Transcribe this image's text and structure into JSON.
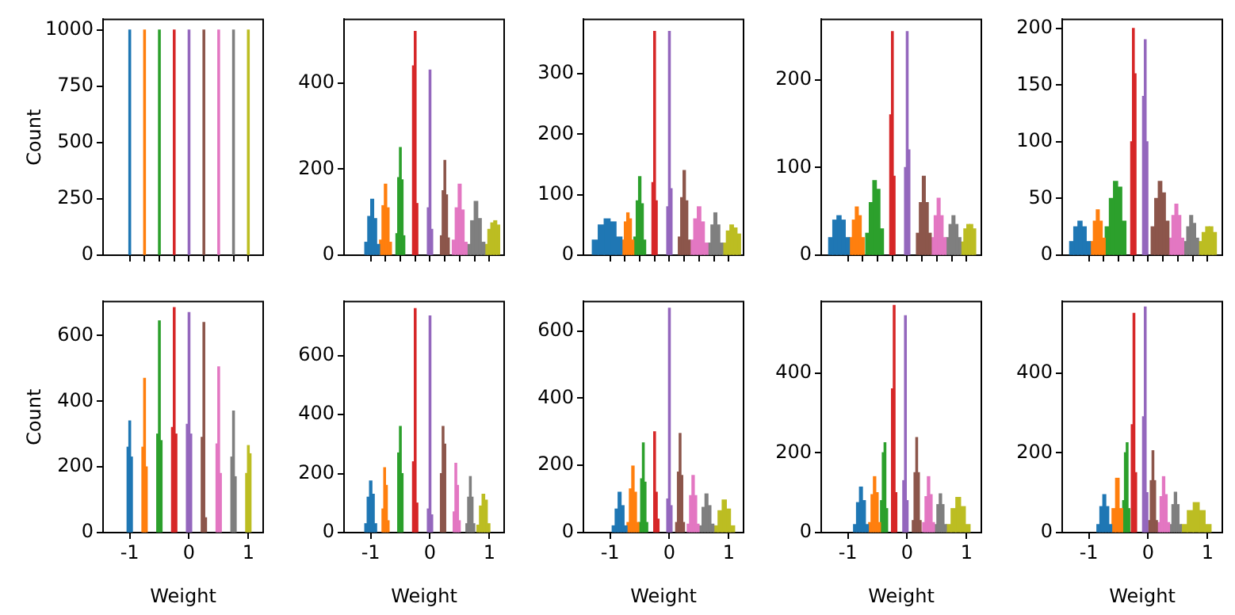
{
  "chart_data": [
    {
      "type": "histogram",
      "ylabel": "Count",
      "xlim": [
        -1.45,
        1.25
      ],
      "ylim": [
        0,
        1048
      ],
      "yticks": [
        0,
        250,
        500,
        750,
        1000
      ],
      "xticks": [
        {
          "value": -1,
          "label": null
        },
        {
          "value": -0.75,
          "label": null
        },
        {
          "value": -0.5,
          "label": null
        },
        {
          "value": -0.25,
          "label": null
        },
        {
          "value": 0,
          "label": null
        },
        {
          "value": 0.25,
          "label": null
        },
        {
          "value": 0.5,
          "label": null
        },
        {
          "value": 0.75,
          "label": null
        },
        {
          "value": 1,
          "label": null
        }
      ],
      "tick_labels": "y",
      "bins": [
        -1.015,
        -0.985,
        -0.765,
        -0.735,
        -0.515,
        -0.485,
        -0.265,
        -0.235,
        -0.015,
        0.015,
        0.235,
        0.265,
        0.485,
        0.515,
        0.735,
        0.765,
        0.985,
        1.015
      ],
      "values": [
        1000,
        null,
        1000,
        null,
        1000,
        null,
        1000,
        null,
        1000,
        null,
        1000,
        null,
        1000,
        null,
        1000,
        null,
        1000
      ],
      "colors": [
        "#1f77b4",
        null,
        "#ff7f0e",
        null,
        "#2ca02c",
        null,
        "#d62728",
        null,
        "#9467bd",
        null,
        "#8c564b",
        null,
        "#e377c2",
        null,
        "#7f7f7f",
        null,
        "#bcbd22"
      ]
    },
    {
      "type": "histogram",
      "xlim": [
        -1.45,
        1.25
      ],
      "ylim": [
        0,
        548
      ],
      "yticks": [
        0,
        200,
        400
      ],
      "xticks": [
        {
          "value": -1,
          "label": null
        },
        {
          "value": -0.75,
          "label": null
        },
        {
          "value": -0.5,
          "label": null
        },
        {
          "value": -0.25,
          "label": null
        },
        {
          "value": 0,
          "label": null
        },
        {
          "value": 0.25,
          "label": null
        },
        {
          "value": 0.5,
          "label": null
        },
        {
          "value": 0.75,
          "label": null
        },
        {
          "value": 1,
          "label": null
        }
      ],
      "tick_labels": "y",
      "bins": [
        -1.1,
        -1.05,
        -1.0,
        -0.95,
        -0.9,
        -0.85,
        -0.81,
        -0.77,
        -0.73,
        -0.69,
        -0.65,
        -0.575,
        -0.545,
        -0.515,
        -0.485,
        -0.455,
        -0.425,
        -0.295,
        -0.265,
        -0.235,
        -0.205,
        -0.045,
        -0.015,
        0.015,
        0.045,
        0.175,
        0.205,
        0.235,
        0.265,
        0.295,
        0.325,
        0.375,
        0.425,
        0.475,
        0.525,
        0.575,
        0.625,
        0.685,
        0.745,
        0.805,
        0.865,
        0.925,
        0.975,
        1.025,
        1.075,
        1.125,
        1.175
      ],
      "values": [
        30,
        90,
        130,
        85,
        25,
        35,
        115,
        165,
        110,
        30,
        null,
        50,
        180,
        250,
        175,
        45,
        null,
        440,
        520,
        120,
        null,
        110,
        430,
        60,
        null,
        45,
        150,
        220,
        140,
        40,
        null,
        35,
        110,
        165,
        105,
        30,
        25,
        80,
        125,
        85,
        30,
        25,
        60,
        75,
        80,
        70
      ],
      "colors": [
        "#1f77b4",
        "#1f77b4",
        "#1f77b4",
        "#1f77b4",
        "#1f77b4",
        "#ff7f0e",
        "#ff7f0e",
        "#ff7f0e",
        "#ff7f0e",
        "#ff7f0e",
        null,
        "#2ca02c",
        "#2ca02c",
        "#2ca02c",
        "#2ca02c",
        "#2ca02c",
        null,
        "#d62728",
        "#d62728",
        "#d62728",
        null,
        "#9467bd",
        "#9467bd",
        "#9467bd",
        null,
        "#8c564b",
        "#8c564b",
        "#8c564b",
        "#8c564b",
        "#8c564b",
        null,
        "#e377c2",
        "#e377c2",
        "#e377c2",
        "#e377c2",
        "#e377c2",
        "#7f7f7f",
        "#7f7f7f",
        "#7f7f7f",
        "#7f7f7f",
        "#7f7f7f",
        "#bcbd22",
        "#bcbd22",
        "#bcbd22",
        "#bcbd22",
        "#bcbd22"
      ]
    },
    {
      "type": "histogram",
      "xlim": [
        -1.45,
        1.25
      ],
      "ylim": [
        0,
        390
      ],
      "yticks": [
        0,
        100,
        200,
        300
      ],
      "xticks": [
        {
          "value": -1,
          "label": null
        },
        {
          "value": -0.75,
          "label": null
        },
        {
          "value": -0.5,
          "label": null
        },
        {
          "value": -0.25,
          "label": null
        },
        {
          "value": 0,
          "label": null
        },
        {
          "value": 0.25,
          "label": null
        },
        {
          "value": 0.5,
          "label": null
        },
        {
          "value": 0.75,
          "label": null
        },
        {
          "value": 1,
          "label": null
        }
      ],
      "tick_labels": "y",
      "bins": [
        -1.3,
        -1.2,
        -1.1,
        -1.0,
        -0.9,
        -0.8,
        -0.76,
        -0.72,
        -0.68,
        -0.64,
        -0.6,
        -0.56,
        -0.52,
        -0.48,
        -0.44,
        -0.4,
        -0.295,
        -0.265,
        -0.235,
        -0.205,
        -0.045,
        -0.015,
        0.015,
        0.045,
        0.15,
        0.19,
        0.23,
        0.27,
        0.31,
        0.35,
        0.41,
        0.47,
        0.53,
        0.59,
        0.65,
        0.7,
        0.75,
        0.8,
        0.85,
        0.9,
        0.96,
        1.02,
        1.08,
        1.14,
        1.2
      ],
      "values": [
        25,
        50,
        60,
        55,
        30,
        25,
        55,
        70,
        60,
        25,
        30,
        90,
        130,
        85,
        25,
        null,
        120,
        370,
        90,
        null,
        80,
        370,
        110,
        null,
        30,
        95,
        140,
        90,
        25,
        25,
        60,
        80,
        55,
        20,
        20,
        50,
        70,
        50,
        20,
        20,
        40,
        50,
        45,
        35
      ],
      "colors": [
        "#1f77b4",
        "#1f77b4",
        "#1f77b4",
        "#1f77b4",
        "#1f77b4",
        "#ff7f0e",
        "#ff7f0e",
        "#ff7f0e",
        "#ff7f0e",
        "#ff7f0e",
        "#2ca02c",
        "#2ca02c",
        "#2ca02c",
        "#2ca02c",
        "#2ca02c",
        null,
        "#d62728",
        "#d62728",
        "#d62728",
        null,
        "#9467bd",
        "#9467bd",
        "#9467bd",
        null,
        "#8c564b",
        "#8c564b",
        "#8c564b",
        "#8c564b",
        "#8c564b",
        "#e377c2",
        "#e377c2",
        "#e377c2",
        "#e377c2",
        "#e377c2",
        "#7f7f7f",
        "#7f7f7f",
        "#7f7f7f",
        "#7f7f7f",
        "#7f7f7f",
        "#bcbd22",
        "#bcbd22",
        "#bcbd22",
        "#bcbd22",
        "#bcbd22"
      ]
    },
    {
      "type": "histogram",
      "xlim": [
        -1.45,
        1.25
      ],
      "ylim": [
        0,
        269
      ],
      "yticks": [
        0,
        100,
        200
      ],
      "xticks": [
        {
          "value": -1,
          "label": null
        },
        {
          "value": -0.75,
          "label": null
        },
        {
          "value": -0.5,
          "label": null
        },
        {
          "value": -0.25,
          "label": null
        },
        {
          "value": 0,
          "label": null
        },
        {
          "value": 0.25,
          "label": null
        },
        {
          "value": 0.5,
          "label": null
        },
        {
          "value": 0.75,
          "label": null
        },
        {
          "value": 1,
          "label": null
        }
      ],
      "tick_labels": "y",
      "bins": [
        -1.325,
        -1.255,
        -1.185,
        -1.115,
        -1.045,
        -0.975,
        -0.925,
        -0.875,
        -0.825,
        -0.775,
        -0.725,
        -0.7,
        -0.64,
        -0.58,
        -0.52,
        -0.46,
        -0.4,
        -0.295,
        -0.265,
        -0.235,
        -0.205,
        -0.045,
        -0.015,
        0.015,
        0.045,
        0.155,
        0.205,
        0.255,
        0.305,
        0.355,
        0.405,
        0.455,
        0.505,
        0.555,
        0.605,
        0.655,
        0.705,
        0.755,
        0.805,
        0.855,
        0.905,
        0.955,
        1.005,
        1.055,
        1.105,
        1.155
      ],
      "values": [
        20,
        40,
        45,
        40,
        20,
        20,
        40,
        55,
        45,
        20,
        null,
        25,
        60,
        85,
        75,
        30,
        null,
        160,
        255,
        90,
        null,
        100,
        255,
        120,
        null,
        25,
        60,
        90,
        60,
        25,
        20,
        45,
        65,
        45,
        20,
        20,
        35,
        45,
        35,
        20,
        15,
        30,
        35,
        35,
        30
      ],
      "colors": [
        "#1f77b4",
        "#1f77b4",
        "#1f77b4",
        "#1f77b4",
        "#1f77b4",
        "#ff7f0e",
        "#ff7f0e",
        "#ff7f0e",
        "#ff7f0e",
        "#ff7f0e",
        null,
        "#2ca02c",
        "#2ca02c",
        "#2ca02c",
        "#2ca02c",
        "#2ca02c",
        null,
        "#d62728",
        "#d62728",
        "#d62728",
        null,
        "#9467bd",
        "#9467bd",
        "#9467bd",
        null,
        "#8c564b",
        "#8c564b",
        "#8c564b",
        "#8c564b",
        "#8c564b",
        "#e377c2",
        "#e377c2",
        "#e377c2",
        "#e377c2",
        "#e377c2",
        "#7f7f7f",
        "#7f7f7f",
        "#7f7f7f",
        "#7f7f7f",
        "#7f7f7f",
        "#bcbd22",
        "#bcbd22",
        "#bcbd22",
        "#bcbd22",
        "#bcbd22"
      ]
    },
    {
      "type": "histogram",
      "xlim": [
        -1.45,
        1.25
      ],
      "ylim": [
        0,
        208
      ],
      "yticks": [
        0,
        50,
        100,
        150,
        200
      ],
      "xticks": [
        {
          "value": -1,
          "label": null
        },
        {
          "value": -0.75,
          "label": null
        },
        {
          "value": -0.5,
          "label": null
        },
        {
          "value": -0.25,
          "label": null
        },
        {
          "value": 0,
          "label": null
        },
        {
          "value": 0.25,
          "label": null
        },
        {
          "value": 0.5,
          "label": null
        },
        {
          "value": 0.75,
          "label": null
        },
        {
          "value": 1,
          "label": null
        }
      ],
      "tick_labels": "y",
      "bins": [
        -1.325,
        -1.255,
        -1.185,
        -1.115,
        -1.045,
        -0.975,
        -0.925,
        -0.875,
        -0.825,
        -0.775,
        -0.725,
        -0.655,
        -0.585,
        -0.515,
        -0.445,
        -0.375,
        -0.295,
        -0.265,
        -0.235,
        -0.205,
        -0.095,
        -0.065,
        -0.035,
        -0.005,
        0.05,
        0.11,
        0.17,
        0.23,
        0.29,
        0.35,
        0.4,
        0.45,
        0.5,
        0.55,
        0.6,
        0.65,
        0.7,
        0.75,
        0.8,
        0.85,
        0.91,
        0.97,
        1.03,
        1.09,
        1.15
      ],
      "values": [
        12,
        25,
        30,
        25,
        12,
        12,
        30,
        40,
        30,
        15,
        25,
        50,
        65,
        60,
        30,
        null,
        100,
        200,
        160,
        null,
        140,
        190,
        100,
        null,
        25,
        50,
        65,
        55,
        30,
        15,
        35,
        45,
        35,
        15,
        12,
        25,
        35,
        28,
        15,
        12,
        20,
        25,
        25,
        20
      ],
      "colors": [
        "#1f77b4",
        "#1f77b4",
        "#1f77b4",
        "#1f77b4",
        "#1f77b4",
        "#ff7f0e",
        "#ff7f0e",
        "#ff7f0e",
        "#ff7f0e",
        "#ff7f0e",
        "#2ca02c",
        "#2ca02c",
        "#2ca02c",
        "#2ca02c",
        "#2ca02c",
        null,
        "#d62728",
        "#d62728",
        "#d62728",
        null,
        "#9467bd",
        "#9467bd",
        "#9467bd",
        null,
        "#8c564b",
        "#8c564b",
        "#8c564b",
        "#8c564b",
        "#8c564b",
        "#e377c2",
        "#e377c2",
        "#e377c2",
        "#e377c2",
        "#e377c2",
        "#7f7f7f",
        "#7f7f7f",
        "#7f7f7f",
        "#7f7f7f",
        "#7f7f7f",
        "#bcbd22",
        "#bcbd22",
        "#bcbd22",
        "#bcbd22",
        "#bcbd22"
      ]
    },
    {
      "type": "histogram",
      "xlabel": "Weight",
      "ylabel": "Count",
      "xlim": [
        -1.45,
        1.25
      ],
      "ylim": [
        0,
        704
      ],
      "yticks": [
        0,
        200,
        400,
        600
      ],
      "xticks": [
        -1,
        0,
        1
      ],
      "bins": [
        -1.045,
        -1.015,
        -0.985,
        -0.955,
        -0.795,
        -0.765,
        -0.735,
        -0.705,
        -0.545,
        -0.515,
        -0.485,
        -0.455,
        -0.295,
        -0.265,
        -0.235,
        -0.205,
        -0.045,
        -0.015,
        0.015,
        0.045,
        0.205,
        0.235,
        0.265,
        0.295,
        0.455,
        0.485,
        0.515,
        0.545,
        0.705,
        0.735,
        0.765,
        0.795,
        0.955,
        0.985,
        1.015,
        1.045
      ],
      "values": [
        260,
        340,
        230,
        null,
        260,
        470,
        200,
        null,
        300,
        645,
        280,
        null,
        320,
        685,
        300,
        null,
        330,
        670,
        300,
        null,
        290,
        640,
        45,
        null,
        270,
        505,
        180,
        null,
        230,
        370,
        170,
        null,
        180,
        265,
        240
      ],
      "colors": [
        "#1f77b4",
        "#1f77b4",
        "#1f77b4",
        null,
        "#ff7f0e",
        "#ff7f0e",
        "#ff7f0e",
        null,
        "#2ca02c",
        "#2ca02c",
        "#2ca02c",
        null,
        "#d62728",
        "#d62728",
        "#d62728",
        null,
        "#9467bd",
        "#9467bd",
        "#9467bd",
        null,
        "#8c564b",
        "#8c564b",
        "#8c564b",
        null,
        "#e377c2",
        "#e377c2",
        "#e377c2",
        null,
        "#7f7f7f",
        "#7f7f7f",
        "#7f7f7f",
        null,
        "#bcbd22",
        "#bcbd22",
        "#bcbd22"
      ]
    },
    {
      "type": "histogram",
      "xlabel": "Weight",
      "xlim": [
        -1.45,
        1.25
      ],
      "ylim": [
        0,
        784
      ],
      "yticks": [
        0,
        200,
        400,
        600
      ],
      "xticks": [
        -1,
        0,
        1
      ],
      "bins": [
        -1.1,
        -1.06,
        -1.02,
        -0.98,
        -0.94,
        -0.9,
        -0.81,
        -0.78,
        -0.75,
        -0.72,
        -0.69,
        -0.545,
        -0.515,
        -0.485,
        -0.455,
        -0.295,
        -0.265,
        -0.235,
        -0.205,
        -0.045,
        -0.015,
        0.015,
        0.045,
        0.175,
        0.205,
        0.235,
        0.265,
        0.39,
        0.42,
        0.45,
        0.48,
        0.51,
        0.605,
        0.635,
        0.665,
        0.695,
        0.725,
        0.755,
        0.79,
        0.834,
        0.878,
        0.922,
        0.966,
        1.01
      ],
      "values": [
        30,
        120,
        175,
        130,
        30,
        null,
        80,
        220,
        160,
        40,
        null,
        270,
        360,
        200,
        null,
        240,
        760,
        100,
        null,
        80,
        735,
        60,
        null,
        200,
        360,
        300,
        null,
        70,
        235,
        160,
        40,
        null,
        30,
        120,
        190,
        120,
        30,
        null,
        25,
        90,
        130,
        110,
        30
      ],
      "colors": [
        "#1f77b4",
        "#1f77b4",
        "#1f77b4",
        "#1f77b4",
        "#1f77b4",
        null,
        "#ff7f0e",
        "#ff7f0e",
        "#ff7f0e",
        "#ff7f0e",
        null,
        "#2ca02c",
        "#2ca02c",
        "#2ca02c",
        null,
        "#d62728",
        "#d62728",
        "#d62728",
        null,
        "#9467bd",
        "#9467bd",
        "#9467bd",
        null,
        "#8c564b",
        "#8c564b",
        "#8c564b",
        null,
        "#e377c2",
        "#e377c2",
        "#e377c2",
        "#e377c2",
        null,
        "#7f7f7f",
        "#7f7f7f",
        "#7f7f7f",
        "#7f7f7f",
        "#7f7f7f",
        null,
        "#bcbd22",
        "#bcbd22",
        "#bcbd22",
        "#bcbd22",
        "#bcbd22"
      ]
    },
    {
      "type": "histogram",
      "xlabel": "Weight",
      "xlim": [
        -1.45,
        1.25
      ],
      "ylim": [
        0,
        688
      ],
      "yticks": [
        0,
        200,
        400,
        600
      ],
      "xticks": [
        -1,
        0,
        1
      ],
      "bins": [
        -0.965,
        -0.915,
        -0.865,
        -0.815,
        -0.765,
        -0.715,
        -0.675,
        -0.635,
        -0.595,
        -0.555,
        -0.515,
        -0.485,
        -0.455,
        -0.425,
        -0.395,
        -0.365,
        -0.265,
        -0.235,
        -0.205,
        -0.175,
        -0.045,
        -0.015,
        0.015,
        0.045,
        0.105,
        0.135,
        0.165,
        0.195,
        0.225,
        0.255,
        0.3,
        0.34,
        0.38,
        0.42,
        0.46,
        0.5,
        0.55,
        0.6,
        0.65,
        0.7,
        0.75,
        0.82,
        0.89,
        0.96,
        1.03,
        1.1
      ],
      "values": [
        20,
        70,
        120,
        80,
        20,
        30,
        130,
        198,
        120,
        30,
        30,
        160,
        267,
        150,
        30,
        null,
        300,
        120,
        40,
        null,
        100,
        668,
        80,
        null,
        30,
        180,
        295,
        170,
        30,
        null,
        25,
        110,
        170,
        110,
        25,
        20,
        75,
        115,
        80,
        25,
        20,
        65,
        97,
        70,
        20
      ],
      "colors": [
        "#1f77b4",
        "#1f77b4",
        "#1f77b4",
        "#1f77b4",
        "#1f77b4",
        "#ff7f0e",
        "#ff7f0e",
        "#ff7f0e",
        "#ff7f0e",
        "#ff7f0e",
        "#2ca02c",
        "#2ca02c",
        "#2ca02c",
        "#2ca02c",
        "#2ca02c",
        null,
        "#d62728",
        "#d62728",
        "#d62728",
        null,
        "#9467bd",
        "#9467bd",
        "#9467bd",
        null,
        "#8c564b",
        "#8c564b",
        "#8c564b",
        "#8c564b",
        "#8c564b",
        null,
        "#e377c2",
        "#e377c2",
        "#e377c2",
        "#e377c2",
        "#e377c2",
        "#7f7f7f",
        "#7f7f7f",
        "#7f7f7f",
        "#7f7f7f",
        "#7f7f7f",
        "#bcbd22",
        "#bcbd22",
        "#bcbd22",
        "#bcbd22",
        "#bcbd22"
      ]
    },
    {
      "type": "histogram",
      "xlabel": "Weight",
      "xlim": [
        -1.45,
        1.25
      ],
      "ylim": [
        0,
        579
      ],
      "yticks": [
        0,
        200,
        400
      ],
      "xticks": [
        -1,
        0,
        1
      ],
      "bins": [
        -0.905,
        -0.855,
        -0.805,
        -0.755,
        -0.705,
        -0.655,
        -0.65,
        -0.61,
        -0.57,
        -0.53,
        -0.49,
        -0.45,
        -0.42,
        -0.39,
        -0.36,
        -0.33,
        -0.265,
        -0.235,
        -0.205,
        -0.175,
        -0.075,
        -0.045,
        -0.015,
        0.015,
        0.085,
        0.115,
        0.145,
        0.175,
        0.205,
        0.235,
        0.26,
        0.3,
        0.34,
        0.38,
        0.42,
        0.46,
        0.5,
        0.54,
        0.58,
        0.62,
        0.66,
        0.74,
        0.82,
        0.9,
        0.98,
        1.06
      ],
      "values": [
        20,
        75,
        114,
        80,
        20,
        null,
        25,
        95,
        140,
        100,
        25,
        80,
        200,
        225,
        60,
        null,
        360,
        569,
        100,
        null,
        130,
        543,
        80,
        null,
        30,
        150,
        238,
        150,
        30,
        null,
        25,
        90,
        140,
        95,
        25,
        20,
        70,
        97,
        70,
        20,
        20,
        60,
        88,
        65,
        20
      ],
      "colors": [
        "#1f77b4",
        "#1f77b4",
        "#1f77b4",
        "#1f77b4",
        "#1f77b4",
        null,
        "#ff7f0e",
        "#ff7f0e",
        "#ff7f0e",
        "#ff7f0e",
        "#ff7f0e",
        "#2ca02c",
        "#2ca02c",
        "#2ca02c",
        "#2ca02c",
        null,
        "#d62728",
        "#d62728",
        "#d62728",
        null,
        "#9467bd",
        "#9467bd",
        "#9467bd",
        null,
        "#8c564b",
        "#8c564b",
        "#8c564b",
        "#8c564b",
        "#8c564b",
        null,
        "#e377c2",
        "#e377c2",
        "#e377c2",
        "#e377c2",
        "#e377c2",
        "#7f7f7f",
        "#7f7f7f",
        "#7f7f7f",
        "#7f7f7f",
        "#7f7f7f",
        "#bcbd22",
        "#bcbd22",
        "#bcbd22",
        "#bcbd22",
        "#bcbd22"
      ]
    },
    {
      "type": "histogram",
      "xlabel": "Weight",
      "xlim": [
        -1.45,
        1.25
      ],
      "ylim": [
        0,
        579
      ],
      "yticks": [
        0,
        200,
        400
      ],
      "xticks": [
        -1,
        0,
        1
      ],
      "bins": [
        -0.865,
        -0.815,
        -0.765,
        -0.715,
        -0.665,
        -0.615,
        -0.61,
        -0.55,
        -0.49,
        -0.43,
        -0.4,
        -0.37,
        -0.34,
        -0.31,
        -0.285,
        -0.255,
        -0.225,
        -0.195,
        -0.095,
        -0.065,
        -0.035,
        -0.005,
        0.005,
        0.035,
        0.065,
        0.095,
        0.125,
        0.155,
        0.16,
        0.2,
        0.24,
        0.28,
        0.32,
        0.36,
        0.4,
        0.44,
        0.48,
        0.52,
        0.56,
        0.66,
        0.76,
        0.86,
        0.96,
        1.06
      ],
      "values": [
        20,
        65,
        95,
        65,
        20,
        null,
        60,
        136,
        60,
        80,
        200,
        225,
        60,
        null,
        270,
        549,
        150,
        null,
        290,
        565,
        100,
        null,
        30,
        130,
        205,
        130,
        30,
        null,
        25,
        90,
        140,
        95,
        25,
        20,
        70,
        101,
        70,
        20,
        20,
        55,
        75,
        55,
        20
      ],
      "colors": [
        "#1f77b4",
        "#1f77b4",
        "#1f77b4",
        "#1f77b4",
        "#1f77b4",
        null,
        "#ff7f0e",
        "#ff7f0e",
        "#ff7f0e",
        "#2ca02c",
        "#2ca02c",
        "#2ca02c",
        "#2ca02c",
        null,
        "#d62728",
        "#d62728",
        "#d62728",
        null,
        "#9467bd",
        "#9467bd",
        "#9467bd",
        null,
        "#8c564b",
        "#8c564b",
        "#8c564b",
        "#8c564b",
        "#8c564b",
        null,
        "#e377c2",
        "#e377c2",
        "#e377c2",
        "#e377c2",
        "#e377c2",
        "#7f7f7f",
        "#7f7f7f",
        "#7f7f7f",
        "#7f7f7f",
        "#7f7f7f",
        "#bcbd22",
        "#bcbd22",
        "#bcbd22",
        "#bcbd22",
        "#bcbd22"
      ]
    }
  ]
}
